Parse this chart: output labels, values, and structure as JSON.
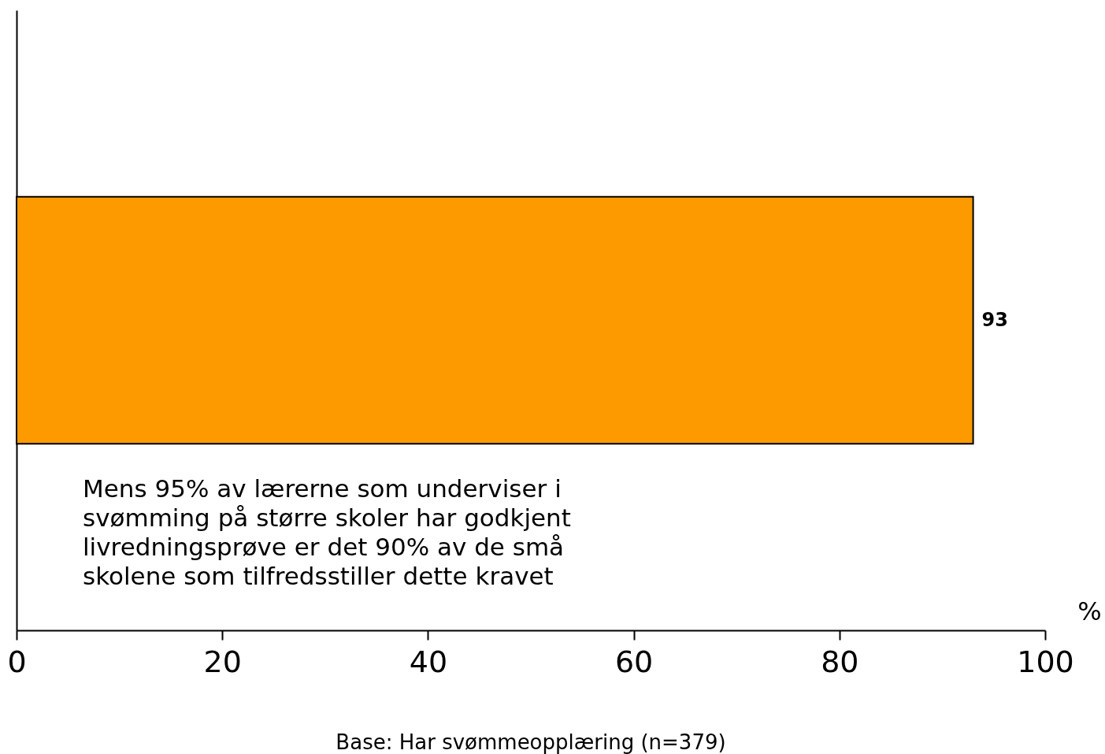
{
  "chart_data": {
    "type": "bar",
    "orientation": "horizontal",
    "categories": [
      null
    ],
    "values": [
      93
    ],
    "color": "#fc9a00",
    "xlim": [
      0,
      100
    ],
    "xticks": [
      0,
      20,
      40,
      60,
      80,
      100
    ],
    "xlabel": "%",
    "grid": false,
    "data_labels": true,
    "annotations": [
      "Mens 95% av lærerne som underviser i\nsvømming på større skoler har godkjent\nlivredningsprøve er det 90% av de små\nskolene som tilfredsstiller dette kravet",
      "Base: Har svømmeopplæring (n=379)"
    ]
  }
}
